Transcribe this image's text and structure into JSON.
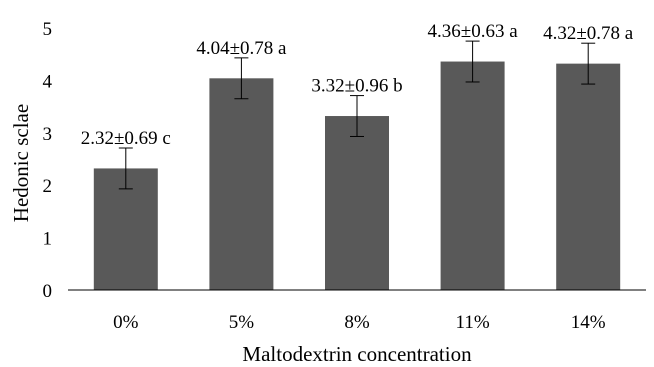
{
  "chart_data": {
    "type": "bar",
    "title": "",
    "xlabel": "Maltodextrin concentration",
    "ylabel": "Hedonic sclae",
    "ylim": [
      0,
      5
    ],
    "yticks": [
      "0",
      "1",
      "2",
      "3",
      "4",
      "5"
    ],
    "categories": [
      "0%",
      "5%",
      "8%",
      "11%",
      "14%"
    ],
    "values": [
      2.32,
      4.04,
      3.32,
      4.36,
      4.32
    ],
    "errors": [
      0.39,
      0.39,
      0.39,
      0.39,
      0.39
    ],
    "data_labels": [
      "2.32±0.69 c",
      "4.04±0.78 a",
      "3.32±0.96 b",
      "4.36±0.63 a",
      "4.32±0.78 a"
    ],
    "grid": false,
    "legend": "none",
    "bar_color": "#595959"
  }
}
